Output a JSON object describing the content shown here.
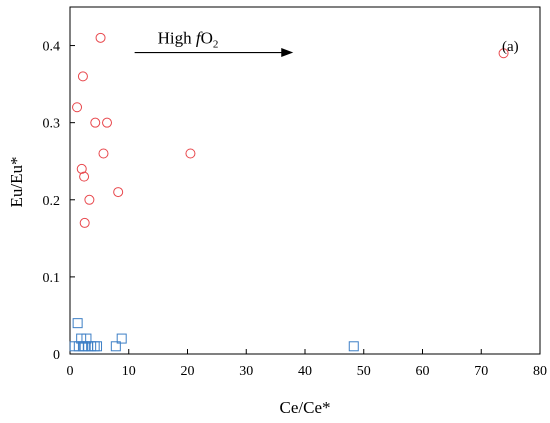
{
  "chart_data": {
    "type": "scatter",
    "panel_label": "(a)",
    "xlabel": "Ce/Ce*",
    "ylabel": "Eu/Eu*",
    "xlim": [
      0,
      80
    ],
    "ylim": [
      0,
      0.45
    ],
    "xticks": [
      "0",
      "10",
      "20",
      "30",
      "40",
      "50",
      "60",
      "70",
      "80"
    ],
    "xtick_values": [
      0,
      10,
      20,
      30,
      40,
      50,
      60,
      70,
      80
    ],
    "yticks": [
      "0",
      "0.1",
      "0.2",
      "0.3",
      "0.4"
    ],
    "ytick_values": [
      0,
      0.1,
      0.2,
      0.3,
      0.4
    ],
    "annotation": {
      "prefix": "High ",
      "italic": "f",
      "main": "O",
      "subscript": "2",
      "arrow_from_x": 11,
      "arrow_to_x": 38,
      "y": 0.4
    },
    "grid": false,
    "series": [
      {
        "marker": "circle",
        "color": "#e8474c",
        "points": [
          [
            1.2,
            0.32
          ],
          [
            2.0,
            0.24
          ],
          [
            2.2,
            0.36
          ],
          [
            2.4,
            0.23
          ],
          [
            2.5,
            0.17
          ],
          [
            3.3,
            0.2
          ],
          [
            4.3,
            0.3
          ],
          [
            5.2,
            0.41
          ],
          [
            5.7,
            0.26
          ],
          [
            6.3,
            0.3
          ],
          [
            8.2,
            0.21
          ],
          [
            20.5,
            0.26
          ],
          [
            73.8,
            0.39
          ]
        ]
      },
      {
        "marker": "square",
        "color": "#3d7fc6",
        "points": [
          [
            0.8,
            0.01
          ],
          [
            1.3,
            0.04
          ],
          [
            1.5,
            0.01
          ],
          [
            1.9,
            0.02
          ],
          [
            2.2,
            0.01
          ],
          [
            2.5,
            0.01
          ],
          [
            2.8,
            0.02
          ],
          [
            3.1,
            0.01
          ],
          [
            3.6,
            0.01
          ],
          [
            4.2,
            0.01
          ],
          [
            4.6,
            0.01
          ],
          [
            7.8,
            0.01
          ],
          [
            8.8,
            0.02
          ],
          [
            48.3,
            0.01
          ]
        ]
      }
    ]
  }
}
